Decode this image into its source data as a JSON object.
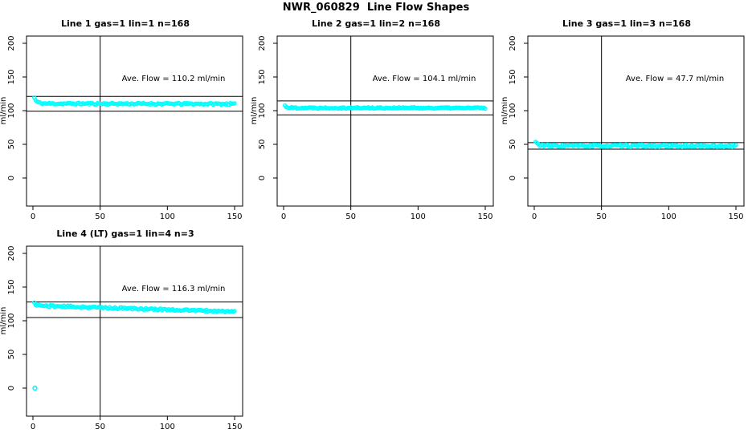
{
  "page_title": "NWR_060829  Line Flow Shapes",
  "colors": {
    "data_points": "#00FFFF",
    "axis": "#000000",
    "background": "#FFFFFF"
  },
  "axes": {
    "ylabel": "ml/min",
    "xticks": [
      0,
      50,
      100,
      150
    ],
    "yticks": [
      0,
      50,
      100,
      150,
      200
    ],
    "xlim": [
      -5,
      156
    ],
    "ylim": [
      0,
      200
    ],
    "vline_x": 50
  },
  "chart_data": [
    {
      "type": "scatter",
      "title": "Line 1 gas=1 lin=1 n=168",
      "line": 1,
      "gas": 1,
      "lin": 1,
      "n": 168,
      "annotation": "Ave. Flow =  110.2  ml/min",
      "ave_flow": 110.2,
      "ylabel": "ml/min",
      "xticks": [
        0,
        50,
        100,
        150
      ],
      "yticks": [
        0,
        50,
        100,
        150,
        200
      ],
      "vline_x": 50,
      "ref_lines": [
        121.2,
        99.2
      ],
      "series": {
        "x_start": 1,
        "x_end": 150,
        "n_drawn": 150,
        "start": 119.5,
        "level_start": 110.5,
        "level_end": 110.0,
        "decay": 1.8,
        "noise": 1.3,
        "seed": 11
      },
      "outliers": []
    },
    {
      "type": "scatter",
      "title": "Line 2 gas=1 lin=2 n=168",
      "line": 2,
      "gas": 1,
      "lin": 2,
      "n": 168,
      "annotation": "Ave. Flow =  104.1  ml/min",
      "ave_flow": 104.1,
      "ylabel": "ml/min",
      "xticks": [
        0,
        50,
        100,
        150
      ],
      "yticks": [
        0,
        50,
        100,
        150,
        200
      ],
      "vline_x": 50,
      "ref_lines": [
        114.5,
        93.7
      ],
      "series": {
        "x_start": 1,
        "x_end": 150,
        "n_drawn": 150,
        "start": 107.5,
        "level_start": 104.3,
        "level_end": 104.0,
        "decay": 1.5,
        "noise": 1.1,
        "seed": 22
      },
      "outliers": []
    },
    {
      "type": "scatter",
      "title": "Line 3 gas=1 lin=3 n=168",
      "line": 3,
      "gas": 1,
      "lin": 3,
      "n": 168,
      "annotation": "Ave. Flow =  47.7  ml/min",
      "ave_flow": 47.7,
      "ylabel": "ml/min",
      "xticks": [
        0,
        50,
        100,
        150
      ],
      "yticks": [
        0,
        50,
        100,
        150,
        200
      ],
      "vline_x": 50,
      "ref_lines": [
        52.5,
        42.9
      ],
      "series": {
        "x_start": 1,
        "x_end": 150,
        "n_drawn": 150,
        "start": 53.5,
        "level_start": 47.9,
        "level_end": 47.5,
        "decay": 2.0,
        "noise": 1.7,
        "seed": 33
      },
      "outliers": []
    },
    {
      "type": "scatter",
      "title": "Line 4 (LT) gas=1 lin=4 n=3",
      "line": 4,
      "line_note": "LT",
      "gas": 1,
      "lin": 4,
      "n": 3,
      "annotation": "Ave. Flow =  116.3  ml/min",
      "ave_flow": 116.3,
      "ylabel": "ml/min",
      "xticks": [
        0,
        50,
        100,
        150
      ],
      "yticks": [
        0,
        50,
        100,
        150,
        200
      ],
      "vline_x": 50,
      "ref_lines": [
        127.9,
        104.7
      ],
      "series": {
        "x_start": 1,
        "x_end": 150,
        "n_drawn": 150,
        "start": 126.0,
        "level_start": 122.5,
        "level_end": 113.5,
        "decay": 2.0,
        "noise": 1.4,
        "seed": 44
      },
      "outliers": [
        {
          "x": 1.5,
          "y": 0
        }
      ]
    }
  ]
}
